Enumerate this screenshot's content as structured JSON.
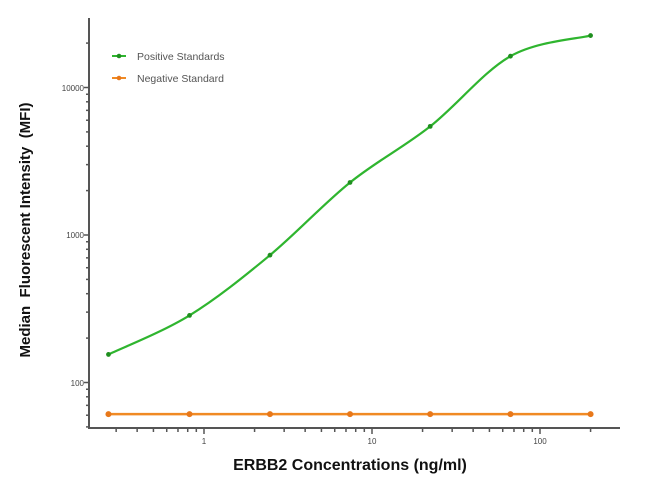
{
  "chart_data": {
    "type": "line",
    "title": "",
    "xlabel": "ERBB2 Concentrations (ng/ml)",
    "ylabel": "Median  Fluorescent Intensity  (MFI)",
    "xscale": "log",
    "yscale": "log",
    "xlim": [
      0.22,
      260
    ],
    "ylim": [
      50,
      30000
    ],
    "x_ticks": [
      "1",
      "10",
      "100"
    ],
    "y_ticks": [
      "100",
      "1000",
      "10000"
    ],
    "grid": false,
    "legend_position": "top-left",
    "series": [
      {
        "name": "Positive Standards",
        "color": "#2fb52f",
        "fit": "4PL curve",
        "x": [
          0.27,
          0.82,
          2.47,
          7.4,
          22.2,
          66.7,
          200
        ],
        "y": [
          155,
          285,
          730,
          2270,
          5450,
          16300,
          22500
        ]
      },
      {
        "name": "Negative Standard",
        "color": "#f08a24",
        "fit": "line",
        "x": [
          0.27,
          0.82,
          2.47,
          7.4,
          22.2,
          66.7,
          200
        ],
        "y": [
          61,
          61,
          61,
          61,
          61,
          61,
          61
        ]
      }
    ]
  },
  "labels": {
    "xlabel": "ERBB2 Concentrations (ng/ml)",
    "ylabel": "Median  Fluorescent Intensity  (MFI)",
    "legend_positive": "Positive Standards",
    "legend_negative": "Negative Standard",
    "ytick_10000": "10000",
    "ytick_1000": "1000",
    "ytick_100": "100",
    "xtick_1": "1",
    "xtick_10": "10",
    "xtick_100": "100"
  }
}
